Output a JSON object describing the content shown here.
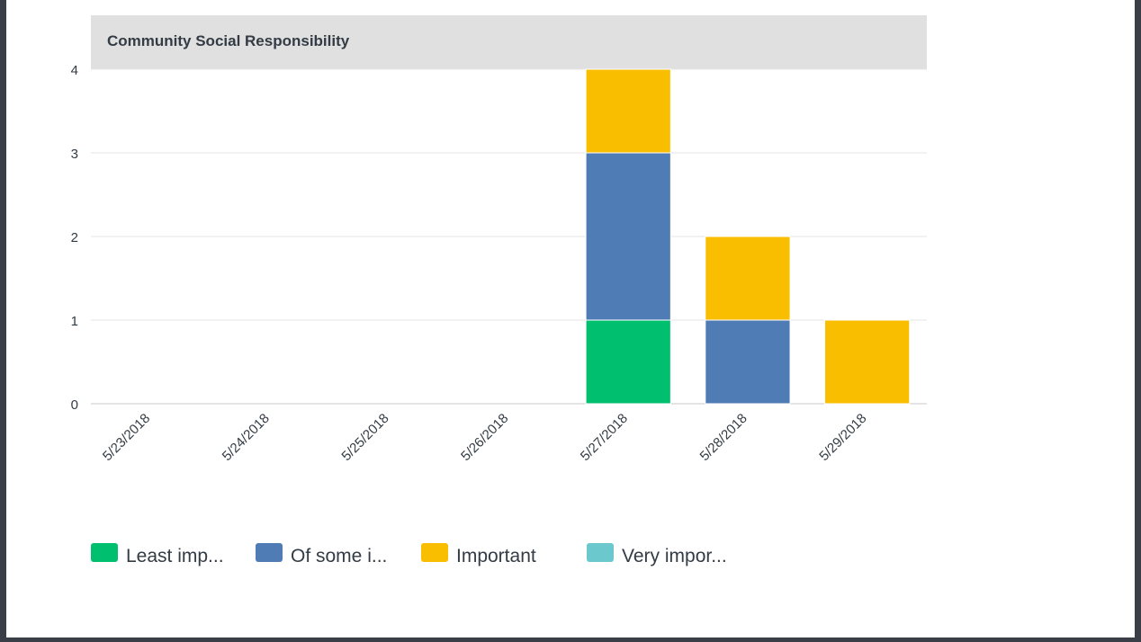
{
  "chart_data": {
    "type": "bar",
    "stacked": true,
    "title": "Community Social Responsibility",
    "categories": [
      "5/23/2018",
      "5/24/2018",
      "5/25/2018",
      "5/26/2018",
      "5/27/2018",
      "5/28/2018",
      "5/29/2018"
    ],
    "series": [
      {
        "name": "Least imp...",
        "color": "#00bf6f",
        "values": [
          0,
          0,
          0,
          0,
          1,
          0,
          0
        ]
      },
      {
        "name": "Of some i...",
        "color": "#507cb6",
        "values": [
          0,
          0,
          0,
          0,
          2,
          1,
          0
        ]
      },
      {
        "name": "Important",
        "color": "#f9be00",
        "values": [
          0,
          0,
          0,
          0,
          1,
          1,
          1
        ]
      },
      {
        "name": "Very impor...",
        "color": "#6bc8cd",
        "values": [
          0,
          0,
          0,
          0,
          0,
          0,
          0
        ]
      }
    ],
    "ylim": [
      0,
      4
    ],
    "yticks": [
      0,
      1,
      2,
      3,
      4
    ],
    "grid": true,
    "legend": "bottom-left"
  }
}
